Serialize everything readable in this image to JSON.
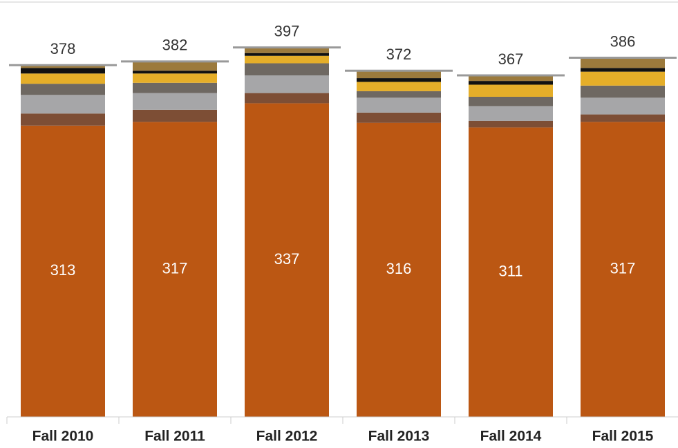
{
  "chart_data": {
    "type": "stacked_bar",
    "categories": [
      "Fall 2010",
      "Fall 2011",
      "Fall 2012",
      "Fall 2013",
      "Fall 2014",
      "Fall 2015"
    ],
    "series": [
      {
        "color": "#bb5713",
        "values": [
          313,
          317,
          337,
          316,
          311,
          317
        ]
      },
      {
        "color": "#7d4e35",
        "values": [
          13,
          13,
          11,
          11,
          7,
          8
        ]
      },
      {
        "color": "#a6a6a8",
        "values": [
          20,
          18,
          19,
          16,
          16,
          18
        ]
      },
      {
        "color": "#6e6862",
        "values": [
          12,
          11,
          13,
          7,
          10,
          13
        ]
      },
      {
        "color": "#e5ae29",
        "values": [
          11,
          10,
          8,
          10,
          13,
          15
        ]
      },
      {
        "color": "#111111",
        "values": [
          6,
          3,
          3,
          4,
          4,
          4
        ]
      },
      {
        "color": "#9c7a3c",
        "values": [
          3,
          10,
          6,
          8,
          6,
          11
        ]
      }
    ],
    "totals": [
      378,
      382,
      397,
      372,
      367,
      386
    ],
    "ylim": [
      0,
      448
    ]
  }
}
